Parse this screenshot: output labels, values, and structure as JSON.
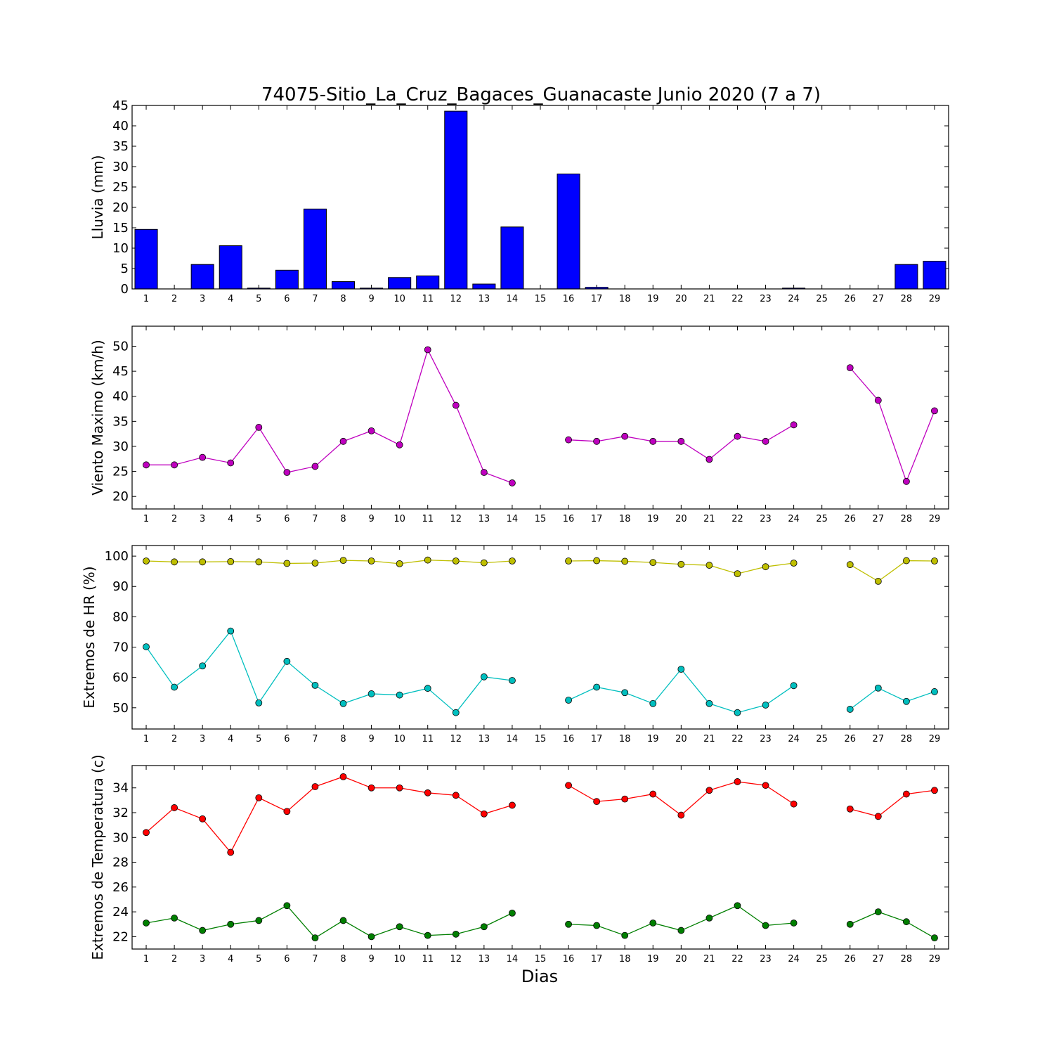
{
  "chart_data": {
    "type": "multi-panel",
    "title": "74075-Sitio_La_Cruz_Bagaces_Guanacaste Junio 2020  (7 a 7)",
    "xlabel": "Dias",
    "days": [
      1,
      2,
      3,
      4,
      5,
      6,
      7,
      8,
      9,
      10,
      11,
      12,
      13,
      14,
      15,
      16,
      17,
      18,
      19,
      20,
      21,
      22,
      23,
      24,
      25,
      26,
      27,
      28,
      29
    ],
    "panels": [
      {
        "type": "bar",
        "ylabel": "Lluvia (mm)",
        "ylim": [
          0,
          45
        ],
        "yticks": [
          0,
          5,
          10,
          15,
          20,
          25,
          30,
          35,
          40,
          45
        ],
        "series": [
          {
            "color": "#0000ff",
            "values": [
              14.6,
              0,
              6.0,
              10.6,
              0.2,
              4.6,
              19.6,
              1.8,
              0.2,
              2.8,
              3.2,
              43.6,
              1.2,
              15.2,
              0,
              28.2,
              0.4,
              0,
              0,
              0,
              0,
              0,
              0,
              0.2,
              0,
              0,
              0,
              6.0,
              6.8
            ]
          }
        ]
      },
      {
        "type": "line",
        "ylabel": "Viento Maximo (km/h)",
        "ylim": [
          17.5,
          54
        ],
        "yticks": [
          20,
          25,
          30,
          35,
          40,
          45,
          50
        ],
        "series": [
          {
            "color": "#bf00bf",
            "values": [
              26.3,
              26.3,
              27.8,
              26.7,
              33.8,
              24.8,
              26.0,
              31.0,
              33.1,
              30.3,
              49.3,
              38.2,
              24.8,
              22.7,
              null,
              31.3,
              31.0,
              32.0,
              31.0,
              31.0,
              27.4,
              32.0,
              31.0,
              34.3,
              null,
              45.7,
              39.2,
              23.0,
              37.1
            ]
          }
        ]
      },
      {
        "type": "line",
        "ylabel": "Extremos de HR (%)",
        "ylim": [
          43,
          103.5
        ],
        "yticks": [
          50,
          60,
          70,
          80,
          90,
          100
        ],
        "series": [
          {
            "color": "#bfbf00",
            "values": [
              98.4,
              98.1,
              98.1,
              98.2,
              98.1,
              97.6,
              97.7,
              98.6,
              98.4,
              97.5,
              98.7,
              98.4,
              97.8,
              98.4,
              null,
              98.4,
              98.5,
              98.3,
              97.9,
              97.3,
              97.0,
              94.2,
              96.5,
              97.7,
              null,
              97.2,
              91.7,
              98.5,
              98.4
            ]
          },
          {
            "color": "#00bfbf",
            "values": [
              70.1,
              56.8,
              63.8,
              75.3,
              51.6,
              65.3,
              57.4,
              51.4,
              54.6,
              54.2,
              56.4,
              48.4,
              60.2,
              59.0,
              null,
              52.5,
              56.8,
              55.0,
              51.4,
              62.7,
              51.4,
              48.4,
              50.9,
              57.3,
              null,
              49.5,
              56.5,
              52.1,
              55.3
            ]
          }
        ]
      },
      {
        "type": "line",
        "ylabel": "Extremos de Temperatura (c)",
        "ylim": [
          21.0,
          35.8
        ],
        "yticks": [
          22,
          24,
          26,
          28,
          30,
          32,
          34
        ],
        "series": [
          {
            "color": "#ff0000",
            "values": [
              30.4,
              32.4,
              31.5,
              28.8,
              33.2,
              32.1,
              34.1,
              34.9,
              34.0,
              34.0,
              33.6,
              33.4,
              31.9,
              32.6,
              null,
              34.2,
              32.9,
              33.1,
              33.5,
              31.8,
              33.8,
              34.5,
              34.2,
              32.7,
              null,
              32.3,
              31.7,
              33.5,
              33.8
            ]
          },
          {
            "color": "#007f00",
            "values": [
              23.1,
              23.5,
              22.5,
              23.0,
              23.3,
              24.5,
              21.9,
              23.3,
              22.0,
              22.8,
              22.1,
              22.2,
              22.8,
              23.9,
              null,
              23.0,
              22.9,
              22.1,
              23.1,
              22.5,
              23.5,
              24.5,
              22.9,
              23.1,
              null,
              23.0,
              24.0,
              23.2,
              21.9
            ]
          }
        ]
      }
    ]
  }
}
